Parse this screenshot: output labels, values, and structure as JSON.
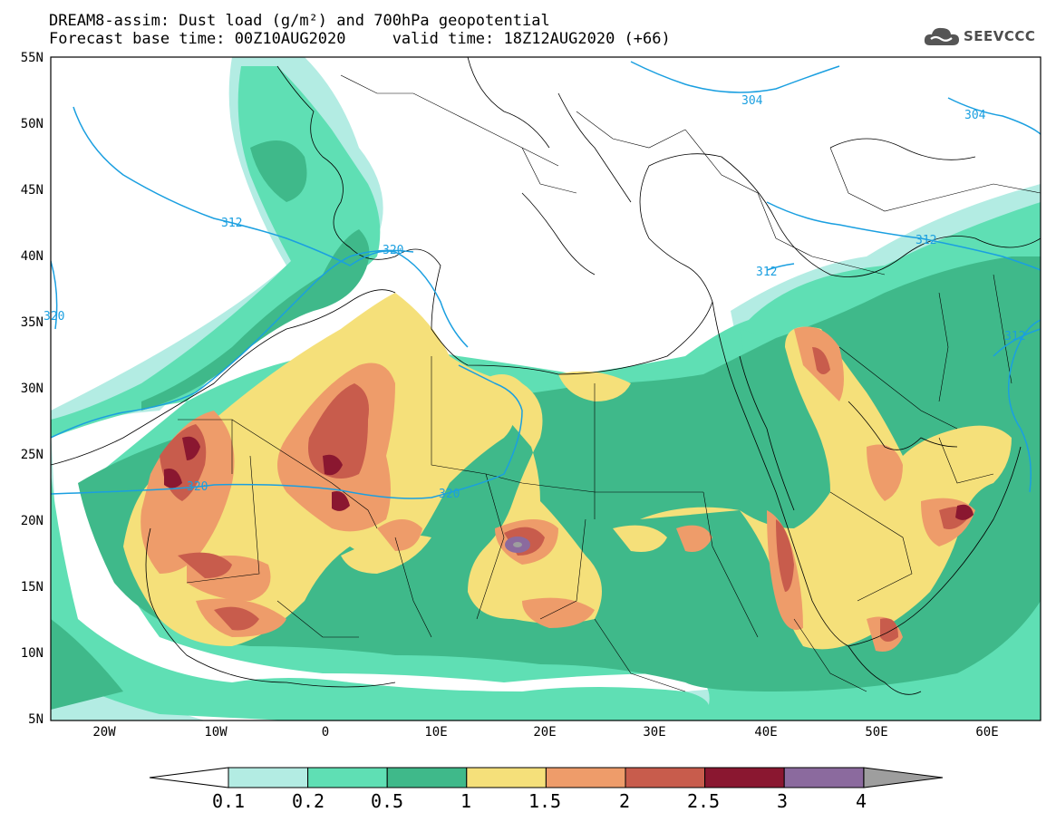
{
  "title": {
    "line1": "DREAM8-assim: Dust load (g/m²) and 700hPa geopotential",
    "line2": "Forecast base time: 00Z10AUG2020     valid time: 18Z12AUG2020 (+66)"
  },
  "logo": {
    "text": "SEEVCCC",
    "icon": "cloud-icon"
  },
  "map": {
    "lat_labels": [
      "55N",
      "50N",
      "45N",
      "40N",
      "35N",
      "30N",
      "25N",
      "20N",
      "15N",
      "10N",
      "5N"
    ],
    "lon_labels": [
      "20W",
      "10W",
      "0",
      "10E",
      "20E",
      "30E",
      "40E",
      "50E",
      "60E"
    ],
    "contour_labels": [
      "304",
      "304",
      "312",
      "320",
      "312",
      "312",
      "312",
      "320",
      "320",
      "320"
    ],
    "contour_color": "#1a9fe0"
  },
  "legend": {
    "labels": [
      "0.1",
      "0.2",
      "0.5",
      "1",
      "1.5",
      "2",
      "2.5",
      "3",
      "4"
    ],
    "colors": [
      "#b3ece3",
      "#5fdfb4",
      "#3fb98a",
      "#f5e07a",
      "#ee9c6a",
      "#c85c4c",
      "#8a1730",
      "#8b6a9e",
      "#9e9e9e"
    ]
  }
}
